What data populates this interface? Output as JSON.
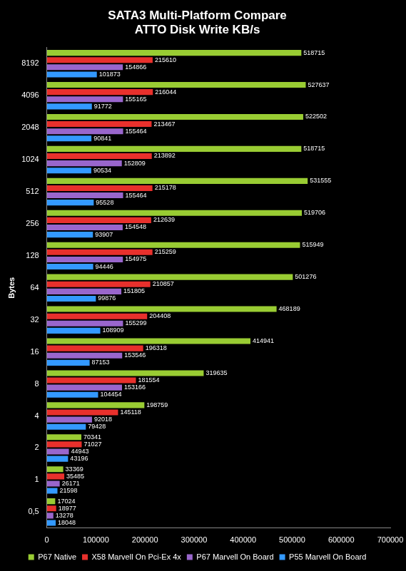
{
  "chart_data": {
    "type": "bar",
    "orientation": "horizontal",
    "title": "SATA3 Multi-Platform Compare",
    "subtitle": "ATTO Disk Write KB/s",
    "y_label": "Bytes",
    "categories": [
      "8192",
      "4096",
      "2048",
      "1024",
      "512",
      "256",
      "128",
      "64",
      "32",
      "16",
      "8",
      "4",
      "2",
      "1",
      "0,5"
    ],
    "series": [
      {
        "name": "P67 Native",
        "color": "#99cc33",
        "values": [
          518715,
          527637,
          522502,
          518715,
          531555,
          519706,
          515949,
          501276,
          468189,
          414941,
          319635,
          198759,
          70341,
          33369,
          17024
        ]
      },
      {
        "name": "X58 Marvell On Pci-Ex 4x",
        "color": "#e8302c",
        "values": [
          215610,
          216044,
          213467,
          213892,
          215178,
          212639,
          215259,
          210857,
          204408,
          196318,
          181554,
          145118,
          71027,
          35485,
          18977
        ]
      },
      {
        "name": "P67 Marvell On Board",
        "color": "#9966cc",
        "values": [
          154866,
          155165,
          155464,
          152809,
          155464,
          154548,
          154975,
          151805,
          155299,
          153546,
          153166,
          92018,
          44943,
          26171,
          13278
        ]
      },
      {
        "name": "P55 Marvell On Board",
        "color": "#3399ff",
        "values": [
          101873,
          91772,
          90841,
          90534,
          95528,
          93907,
          94446,
          99876,
          108909,
          87153,
          104454,
          79428,
          43196,
          21598,
          18048
        ]
      }
    ],
    "xlim": [
      0,
      700000
    ],
    "xticks": [
      0,
      100000,
      200000,
      300000,
      400000,
      500000,
      600000,
      700000
    ],
    "grid": false,
    "legend": "bottom",
    "data_labels": true
  }
}
